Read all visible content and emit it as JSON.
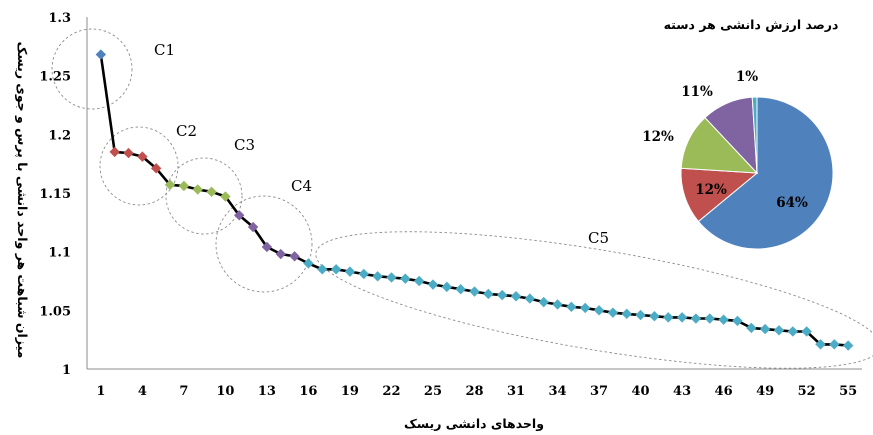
{
  "chart_data": {
    "type": "line",
    "xlabel": "واحدهای دانشی ریسک",
    "ylabel": "میزان شباهت هر واحد دانشی با پرس و جوی ریسک",
    "ylim": [
      1,
      1.3
    ],
    "yticks": [
      "1",
      "1.05",
      "1.1",
      "1.15",
      "1.2",
      "1.25",
      "1.3"
    ],
    "xlim": [
      0,
      56
    ],
    "xticks": [
      "1",
      "4",
      "7",
      "10",
      "13",
      "16",
      "19",
      "22",
      "25",
      "28",
      "31",
      "34",
      "37",
      "40",
      "43",
      "46",
      "49",
      "52",
      "55"
    ],
    "grid": false,
    "x": [
      1,
      2,
      3,
      4,
      5,
      6,
      7,
      8,
      9,
      10,
      11,
      12,
      13,
      14,
      15,
      16,
      17,
      18,
      19,
      20,
      21,
      22,
      23,
      24,
      25,
      26,
      27,
      28,
      29,
      30,
      31,
      32,
      33,
      34,
      35,
      36,
      37,
      38,
      39,
      40,
      41,
      42,
      43,
      44,
      45,
      46,
      47,
      48,
      49,
      50,
      51,
      52,
      53,
      54,
      55
    ],
    "values": [
      1.268,
      1.185,
      1.184,
      1.181,
      1.171,
      1.157,
      1.156,
      1.153,
      1.151,
      1.147,
      1.131,
      1.121,
      1.104,
      1.098,
      1.096,
      1.09,
      1.085,
      1.085,
      1.083,
      1.081,
      1.079,
      1.078,
      1.077,
      1.075,
      1.072,
      1.07,
      1.068,
      1.066,
      1.064,
      1.063,
      1.062,
      1.06,
      1.057,
      1.055,
      1.053,
      1.052,
      1.05,
      1.048,
      1.047,
      1.046,
      1.045,
      1.044,
      1.044,
      1.043,
      1.043,
      1.042,
      1.041,
      1.035,
      1.034,
      1.033,
      1.032,
      1.032,
      1.021,
      1.021,
      1.02
    ],
    "clusters": [
      {
        "name": "C1",
        "from": 1,
        "to": 1,
        "color": "#4f81bd"
      },
      {
        "name": "C2",
        "from": 2,
        "to": 5,
        "color": "#c0504d"
      },
      {
        "name": "C3",
        "from": 6,
        "to": 10,
        "color": "#9bbb59"
      },
      {
        "name": "C4",
        "from": 11,
        "to": 15,
        "color": "#8064a2"
      },
      {
        "name": "C5",
        "from": 16,
        "to": 55,
        "color": "#4bacc6"
      }
    ],
    "pie": {
      "title": "درصد ارزش دانشی هر دسته",
      "slices": [
        {
          "label": "64%",
          "value": 64,
          "color": "#4f81bd"
        },
        {
          "label": "12%",
          "value": 12,
          "color": "#c0504d"
        },
        {
          "label": "12%",
          "value": 12,
          "color": "#9bbb59"
        },
        {
          "label": "11%",
          "value": 11,
          "color": "#8064a2"
        },
        {
          "label": "1%",
          "value": 1,
          "color": "#4bacc6"
        }
      ]
    }
  }
}
